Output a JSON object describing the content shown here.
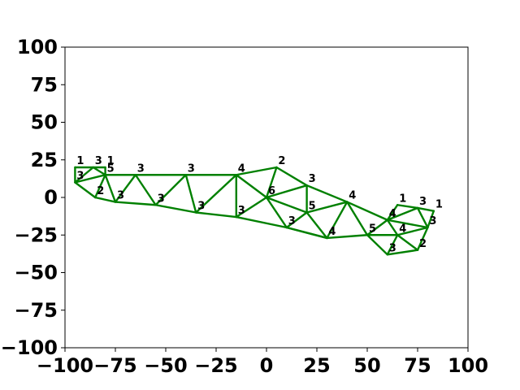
{
  "chart_data": {
    "type": "graph",
    "xlim": [
      -100,
      100
    ],
    "ylim": [
      -100,
      100
    ],
    "x_ticks": [
      "−100",
      "−75",
      "−50",
      "−25",
      "0",
      "25",
      "50",
      "75",
      "100"
    ],
    "y_ticks": [
      "100",
      "75",
      "50",
      "25",
      "0",
      "−25",
      "−50",
      "−75",
      "−100"
    ],
    "x_tick_values": [
      -100,
      -75,
      -50,
      -25,
      0,
      25,
      50,
      75,
      100
    ],
    "y_tick_values": [
      100,
      75,
      50,
      25,
      0,
      -25,
      -50,
      -75,
      -100
    ],
    "edge_color": "#008000",
    "nodes": [
      {
        "id": 0,
        "x": -95,
        "y": 20,
        "label": "1"
      },
      {
        "id": 1,
        "x": -86,
        "y": 20,
        "label": "3"
      },
      {
        "id": 2,
        "x": -80,
        "y": 20,
        "label": "1"
      },
      {
        "id": 3,
        "x": -95,
        "y": 10,
        "label": "3"
      },
      {
        "id": 4,
        "x": -80,
        "y": 15,
        "label": "5"
      },
      {
        "id": 5,
        "x": -85,
        "y": 0,
        "label": "2"
      },
      {
        "id": 6,
        "x": -75,
        "y": -3,
        "label": "3"
      },
      {
        "id": 7,
        "x": -65,
        "y": 15,
        "label": "3"
      },
      {
        "id": 8,
        "x": -55,
        "y": -5,
        "label": "3"
      },
      {
        "id": 9,
        "x": -40,
        "y": 15,
        "label": "3"
      },
      {
        "id": 10,
        "x": -35,
        "y": -10,
        "label": "3"
      },
      {
        "id": 11,
        "x": -15,
        "y": 15,
        "label": "4"
      },
      {
        "id": 12,
        "x": -15,
        "y": -13,
        "label": "3"
      },
      {
        "id": 13,
        "x": 5,
        "y": 20,
        "label": "2"
      },
      {
        "id": 14,
        "x": 0,
        "y": 0,
        "label": "6"
      },
      {
        "id": 15,
        "x": 20,
        "y": 8,
        "label": "3"
      },
      {
        "id": 16,
        "x": 10,
        "y": -20,
        "label": "3"
      },
      {
        "id": 17,
        "x": 20,
        "y": -10,
        "label": "5"
      },
      {
        "id": 18,
        "x": 40,
        "y": -3,
        "label": "4"
      },
      {
        "id": 19,
        "x": 30,
        "y": -27,
        "label": "4"
      },
      {
        "id": 20,
        "x": 50,
        "y": -25,
        "label": "5"
      },
      {
        "id": 21,
        "x": 60,
        "y": -15,
        "label": "4"
      },
      {
        "id": 22,
        "x": 65,
        "y": -5,
        "label": "1"
      },
      {
        "id": 23,
        "x": 75,
        "y": -7,
        "label": "3"
      },
      {
        "id": 24,
        "x": 83,
        "y": -9,
        "label": "1"
      },
      {
        "id": 25,
        "x": 65,
        "y": -25,
        "label": "4"
      },
      {
        "id": 26,
        "x": 80,
        "y": -20,
        "label": "3"
      },
      {
        "id": 27,
        "x": 60,
        "y": -38,
        "label": "3"
      },
      {
        "id": 28,
        "x": 75,
        "y": -35,
        "label": "2"
      }
    ],
    "edges": [
      [
        0,
        2
      ],
      [
        0,
        3
      ],
      [
        2,
        4
      ],
      [
        3,
        4
      ],
      [
        3,
        1
      ],
      [
        1,
        4
      ],
      [
        4,
        5
      ],
      [
        3,
        5
      ],
      [
        5,
        6
      ],
      [
        4,
        6
      ],
      [
        4,
        7
      ],
      [
        6,
        7
      ],
      [
        7,
        8
      ],
      [
        6,
        8
      ],
      [
        7,
        9
      ],
      [
        8,
        9
      ],
      [
        9,
        10
      ],
      [
        8,
        10
      ],
      [
        9,
        11
      ],
      [
        10,
        11
      ],
      [
        10,
        12
      ],
      [
        11,
        12
      ],
      [
        11,
        13
      ],
      [
        11,
        14
      ],
      [
        12,
        14
      ],
      [
        13,
        14
      ],
      [
        13,
        15
      ],
      [
        14,
        15
      ],
      [
        14,
        16
      ],
      [
        12,
        16
      ],
      [
        14,
        17
      ],
      [
        15,
        17
      ],
      [
        16,
        17
      ],
      [
        15,
        18
      ],
      [
        17,
        18
      ],
      [
        17,
        19
      ],
      [
        16,
        19
      ],
      [
        18,
        19
      ],
      [
        18,
        20
      ],
      [
        19,
        20
      ],
      [
        18,
        21
      ],
      [
        20,
        21
      ],
      [
        21,
        22
      ],
      [
        22,
        23
      ],
      [
        21,
        23
      ],
      [
        23,
        24
      ],
      [
        23,
        26
      ],
      [
        24,
        26
      ],
      [
        21,
        26
      ],
      [
        21,
        25
      ],
      [
        20,
        25
      ],
      [
        25,
        26
      ],
      [
        20,
        27
      ],
      [
        25,
        27
      ],
      [
        25,
        28
      ],
      [
        26,
        28
      ],
      [
        27,
        28
      ],
      [
        16,
        19
      ]
    ]
  }
}
